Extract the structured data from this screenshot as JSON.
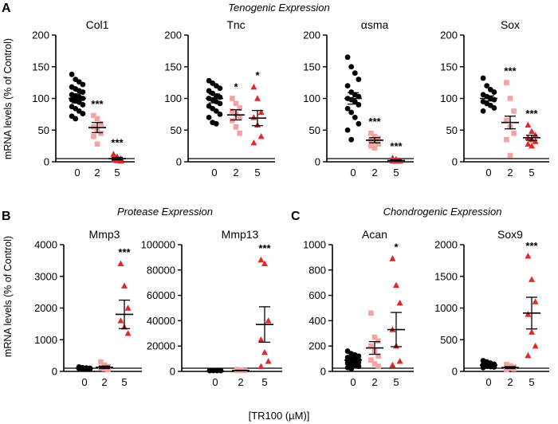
{
  "figure": {
    "panel_labels": [
      "A",
      "B",
      "C"
    ],
    "section_titles": {
      "a": "Tenogenic Expression",
      "b": "Protease Expression",
      "c": "Chondrogenic Expression"
    },
    "ylabel": "mRNA levels (% of Control)",
    "xlabel": "[TR100 (µM)]",
    "colors": {
      "g0": "#000000",
      "g2": "#f4a3a3",
      "g5": "#e32626",
      "line": "#000000"
    }
  },
  "chart_data": [
    {
      "type": "scatter",
      "title": "Col1",
      "categories": [
        "0",
        "2",
        "5"
      ],
      "ylim": [
        0,
        200
      ],
      "yticks": [
        0,
        50,
        100,
        150,
        200
      ],
      "ytick_labels": [
        "0",
        "50",
        "100",
        "150",
        "200"
      ],
      "groups": [
        {
          "name": "0",
          "mean": 100,
          "sem": 7,
          "points": [
            138,
            130,
            126,
            122,
            118,
            115,
            112,
            110,
            106,
            104,
            102,
            100,
            98,
            96,
            94,
            90,
            87,
            84,
            80,
            76,
            72,
            68
          ]
        },
        {
          "name": "2",
          "mean": 54,
          "sem": 8,
          "points": [
            73,
            68,
            60,
            55,
            50,
            45,
            40,
            28
          ]
        },
        {
          "name": "5",
          "mean": 5,
          "sem": 2,
          "points": [
            12,
            8,
            5,
            3,
            2,
            1
          ]
        }
      ],
      "significance": [
        "",
        "***",
        "***"
      ]
    },
    {
      "type": "scatter",
      "title": "Tnc",
      "categories": [
        "0",
        "2",
        "5"
      ],
      "ylim": [
        0,
        200
      ],
      "yticks": [
        0,
        50,
        100,
        150,
        200
      ],
      "ytick_labels": [
        "0",
        "50",
        "100",
        "150",
        "200"
      ],
      "groups": [
        {
          "name": "0",
          "mean": 100,
          "sem": 7,
          "points": [
            128,
            124,
            120,
            116,
            112,
            108,
            104,
            102,
            100,
            98,
            95,
            92,
            88,
            84,
            80,
            75,
            70,
            62,
            60
          ]
        },
        {
          "name": "2",
          "mean": 74,
          "sem": 8,
          "points": [
            100,
            92,
            85,
            80,
            75,
            70,
            65,
            55,
            45
          ]
        },
        {
          "name": "5",
          "mean": 69,
          "sem": 12,
          "points": [
            118,
            100,
            78,
            70,
            58,
            40,
            30
          ]
        }
      ],
      "significance": [
        "",
        "*",
        "*"
      ]
    },
    {
      "type": "scatter",
      "title": "αsma",
      "categories": [
        "0",
        "2",
        "5"
      ],
      "ylim": [
        0,
        200
      ],
      "yticks": [
        0,
        50,
        100,
        150,
        200
      ],
      "ytick_labels": [
        "0",
        "50",
        "100",
        "150",
        "200"
      ],
      "groups": [
        {
          "name": "0",
          "mean": 100,
          "sem": 9,
          "points": [
            165,
            150,
            140,
            130,
            120,
            110,
            106,
            103,
            100,
            98,
            95,
            90,
            84,
            78,
            70,
            60,
            50,
            35
          ]
        },
        {
          "name": "2",
          "mean": 34,
          "sem": 4,
          "points": [
            45,
            40,
            37,
            34,
            31,
            28,
            25,
            22
          ]
        },
        {
          "name": "5",
          "mean": 2,
          "sem": 1,
          "points": [
            6,
            4,
            2,
            1,
            0,
            0
          ]
        }
      ],
      "significance": [
        "",
        "***",
        "***"
      ]
    },
    {
      "type": "scatter",
      "title": "Sox",
      "categories": [
        "0",
        "2",
        "5"
      ],
      "ylim": [
        0,
        200
      ],
      "yticks": [
        0,
        50,
        100,
        150,
        200
      ],
      "ytick_labels": [
        "0",
        "50",
        "100",
        "150",
        "200"
      ],
      "groups": [
        {
          "name": "0",
          "mean": 100,
          "sem": 4,
          "points": [
            132,
            120,
            114,
            110,
            106,
            103,
            100,
            98,
            95,
            92,
            89,
            85,
            80
          ]
        },
        {
          "name": "2",
          "mean": 62,
          "sem": 10,
          "points": [
            125,
            100,
            80,
            65,
            55,
            45,
            35,
            10
          ]
        },
        {
          "name": "5",
          "mean": 38,
          "sem": 4,
          "points": [
            58,
            48,
            42,
            38,
            35,
            32,
            28,
            25
          ]
        }
      ],
      "significance": [
        "",
        "***",
        "***"
      ]
    },
    {
      "type": "scatter",
      "title": "Mmp3",
      "categories": [
        "0",
        "2",
        "5"
      ],
      "ylim": [
        0,
        4000
      ],
      "yticks": [
        0,
        1000,
        2000,
        3000,
        4000
      ],
      "ytick_labels": [
        "0",
        "1000",
        "2000",
        "3000",
        "4000"
      ],
      "groups": [
        {
          "name": "0",
          "mean": 100,
          "sem": 15,
          "points": [
            140,
            120,
            110,
            100,
            95,
            90,
            85,
            80
          ]
        },
        {
          "name": "2",
          "mean": 130,
          "sem": 40,
          "points": [
            300,
            200,
            150,
            100,
            80,
            60
          ]
        },
        {
          "name": "5",
          "mean": 1800,
          "sem": 450,
          "points": [
            3400,
            2700,
            2000,
            1600,
            1400,
            1200
          ]
        }
      ],
      "significance": [
        "",
        "",
        "***"
      ]
    },
    {
      "type": "scatter",
      "title": "Mmp13",
      "categories": [
        "0",
        "2",
        "5"
      ],
      "ylim": [
        0,
        100000
      ],
      "yticks": [
        0,
        20000,
        40000,
        60000,
        80000,
        100000
      ],
      "ytick_labels": [
        "0",
        "20000",
        "40000",
        "60000",
        "80000",
        "100000"
      ],
      "groups": [
        {
          "name": "0",
          "mean": 100,
          "sem": 20,
          "points": [
            200,
            150,
            100,
            80,
            60,
            40,
            30,
            20
          ]
        },
        {
          "name": "2",
          "mean": 700,
          "sem": 200,
          "points": [
            1500,
            1000,
            600,
            300,
            200
          ]
        },
        {
          "name": "5",
          "mean": 37000,
          "sem": 14000,
          "points": [
            88000,
            85000,
            40000,
            25000,
            15000,
            8000,
            4000
          ]
        }
      ],
      "significance": [
        "",
        "",
        "***"
      ]
    },
    {
      "type": "scatter",
      "title": "Acan",
      "categories": [
        "0",
        "2",
        "5"
      ],
      "ylim": [
        0,
        1000
      ],
      "yticks": [
        0,
        200,
        400,
        600,
        800,
        1000
      ],
      "ytick_labels": [
        "0",
        "200",
        "400",
        "600",
        "800",
        "1000"
      ],
      "groups": [
        {
          "name": "0",
          "mean": 90,
          "sem": 10,
          "points": [
            160,
            140,
            130,
            120,
            110,
            100,
            95,
            90,
            85,
            80,
            75,
            70,
            65,
            60,
            50,
            40,
            30,
            20
          ]
        },
        {
          "name": "2",
          "mean": 185,
          "sem": 50,
          "points": [
            460,
            270,
            240,
            200,
            160,
            120,
            90,
            60,
            40
          ]
        },
        {
          "name": "5",
          "mean": 330,
          "sem": 135,
          "points": [
            890,
            680,
            540,
            330,
            200,
            80,
            50
          ]
        }
      ],
      "significance": [
        "",
        "",
        "*"
      ]
    },
    {
      "type": "scatter",
      "title": "Sox9",
      "categories": [
        "0",
        "2",
        "5"
      ],
      "ylim": [
        0,
        2000
      ],
      "yticks": [
        0,
        500,
        1000,
        1500,
        2000
      ],
      "ytick_labels": [
        "0",
        "500",
        "1000",
        "1500",
        "2000"
      ],
      "groups": [
        {
          "name": "0",
          "mean": 100,
          "sem": 10,
          "points": [
            170,
            150,
            130,
            115,
            105,
            100,
            95,
            90,
            85,
            80,
            75,
            70,
            60
          ]
        },
        {
          "name": "2",
          "mean": 60,
          "sem": 15,
          "points": [
            110,
            90,
            70,
            60,
            50,
            40,
            30
          ]
        },
        {
          "name": "5",
          "mean": 920,
          "sem": 250,
          "points": [
            1820,
            1450,
            1100,
            900,
            620,
            400,
            250
          ]
        }
      ],
      "significance": [
        "",
        "",
        "***"
      ]
    }
  ]
}
